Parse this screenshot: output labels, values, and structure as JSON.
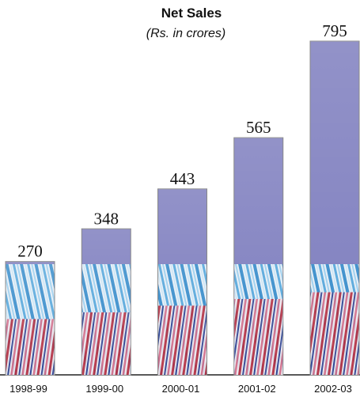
{
  "chart_data": {
    "type": "bar",
    "title": "Net Sales",
    "subtitle": "(Rs. in crores)",
    "categories": [
      "1998-99",
      "1999-00",
      "2000-01",
      "2001-02",
      "2002-03"
    ],
    "values": [
      270,
      348,
      443,
      565,
      795
    ],
    "color": "#7f7fbf"
  }
}
